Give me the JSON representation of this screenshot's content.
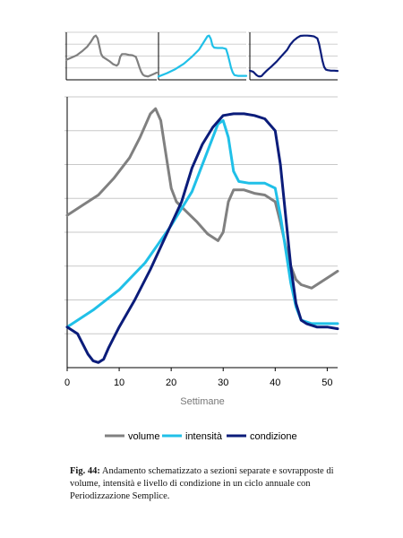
{
  "chart_data": {
    "type": "line",
    "xlabel": "Settimane",
    "xlim": [
      0,
      52
    ],
    "xticks": [
      0,
      10,
      20,
      30,
      40,
      50
    ],
    "ylim": [
      0,
      8
    ],
    "grid": true,
    "legend": "bottom",
    "series": [
      {
        "name": "volume",
        "color": "#808080",
        "points": [
          [
            0,
            4.5
          ],
          [
            3,
            4.8
          ],
          [
            6,
            5.1
          ],
          [
            9,
            5.6
          ],
          [
            12,
            6.2
          ],
          [
            14,
            6.8
          ],
          [
            16,
            7.5
          ],
          [
            17,
            7.65
          ],
          [
            18,
            7.3
          ],
          [
            19,
            6.3
          ],
          [
            20,
            5.3
          ],
          [
            21,
            4.9
          ],
          [
            23,
            4.6
          ],
          [
            25,
            4.3
          ],
          [
            27,
            3.95
          ],
          [
            29,
            3.75
          ],
          [
            30,
            4.0
          ],
          [
            31,
            4.9
          ],
          [
            32,
            5.25
          ],
          [
            34,
            5.25
          ],
          [
            36,
            5.15
          ],
          [
            38,
            5.1
          ],
          [
            40,
            4.9
          ],
          [
            41,
            4.3
          ],
          [
            42,
            3.6
          ],
          [
            43,
            3.0
          ],
          [
            44,
            2.6
          ],
          [
            45,
            2.45
          ],
          [
            47,
            2.35
          ],
          [
            49,
            2.55
          ],
          [
            51,
            2.75
          ],
          [
            52,
            2.85
          ]
        ]
      },
      {
        "name": "intensità",
        "color": "#20c0e8",
        "points": [
          [
            0,
            1.2
          ],
          [
            5,
            1.7
          ],
          [
            10,
            2.3
          ],
          [
            15,
            3.1
          ],
          [
            20,
            4.2
          ],
          [
            24,
            5.2
          ],
          [
            27,
            6.4
          ],
          [
            29,
            7.2
          ],
          [
            30,
            7.3
          ],
          [
            31,
            6.8
          ],
          [
            32,
            5.8
          ],
          [
            33,
            5.5
          ],
          [
            35,
            5.45
          ],
          [
            38,
            5.45
          ],
          [
            40,
            5.3
          ],
          [
            41,
            4.5
          ],
          [
            42,
            3.5
          ],
          [
            43,
            2.5
          ],
          [
            44,
            1.8
          ],
          [
            45,
            1.4
          ],
          [
            47,
            1.3
          ],
          [
            50,
            1.3
          ],
          [
            52,
            1.3
          ]
        ]
      },
      {
        "name": "condizione",
        "color": "#0b1c7a",
        "points": [
          [
            0,
            1.2
          ],
          [
            2,
            1.0
          ],
          [
            4,
            0.4
          ],
          [
            5,
            0.2
          ],
          [
            6,
            0.15
          ],
          [
            7,
            0.25
          ],
          [
            8,
            0.6
          ],
          [
            10,
            1.2
          ],
          [
            13,
            2.0
          ],
          [
            16,
            2.9
          ],
          [
            19,
            3.9
          ],
          [
            22,
            4.9
          ],
          [
            24,
            5.9
          ],
          [
            26,
            6.6
          ],
          [
            28,
            7.1
          ],
          [
            30,
            7.45
          ],
          [
            32,
            7.5
          ],
          [
            34,
            7.5
          ],
          [
            36,
            7.45
          ],
          [
            38,
            7.35
          ],
          [
            40,
            7.0
          ],
          [
            41,
            6.0
          ],
          [
            42,
            4.5
          ],
          [
            43,
            3.0
          ],
          [
            44,
            1.9
          ],
          [
            45,
            1.4
          ],
          [
            46,
            1.3
          ],
          [
            48,
            1.2
          ],
          [
            50,
            1.2
          ],
          [
            52,
            1.15
          ]
        ]
      }
    ]
  },
  "caption": {
    "label": "Fig. 44:",
    "text": "Andamento schematizzato a sezioni separate e sovrapposte di volume, intensità e livello di condizione in un ciclo annuale con Periodizzazione Semplice."
  }
}
